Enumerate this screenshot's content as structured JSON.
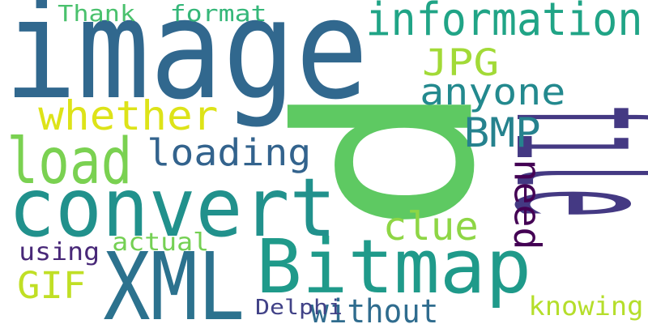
{
  "words": [
    {
      "text": "image",
      "color": "#31688e"
    },
    {
      "text": "p",
      "color": "#5ec962"
    },
    {
      "text": "file",
      "color": "#443983"
    },
    {
      "text": "convert",
      "color": "#21918c"
    },
    {
      "text": "XML",
      "color": "#2c728e"
    },
    {
      "text": "Bitmap",
      "color": "#1f9a8a"
    },
    {
      "text": "information",
      "color": "#20a486"
    },
    {
      "text": "load",
      "color": "#7ad151"
    },
    {
      "text": "whether",
      "color": "#dde318"
    },
    {
      "text": "loading",
      "color": "#33638d"
    },
    {
      "text": "anyone",
      "color": "#23898e"
    },
    {
      "text": "JPG",
      "color": "#a2da37"
    },
    {
      "text": "BMP",
      "color": "#26828e"
    },
    {
      "text": "clue",
      "color": "#8ed645"
    },
    {
      "text": "need",
      "color": "#440154"
    },
    {
      "text": "GIF",
      "color": "#c0df25"
    },
    {
      "text": "without",
      "color": "#2f6c8e"
    },
    {
      "text": "Delphi",
      "color": "#414287"
    },
    {
      "text": "knowing",
      "color": "#b5de2b"
    },
    {
      "text": "using",
      "color": "#482878"
    },
    {
      "text": "actual",
      "color": "#75d054"
    },
    {
      "text": "Thank",
      "color": "#4ac16d"
    },
    {
      "text": "format",
      "color": "#35b779"
    }
  ]
}
